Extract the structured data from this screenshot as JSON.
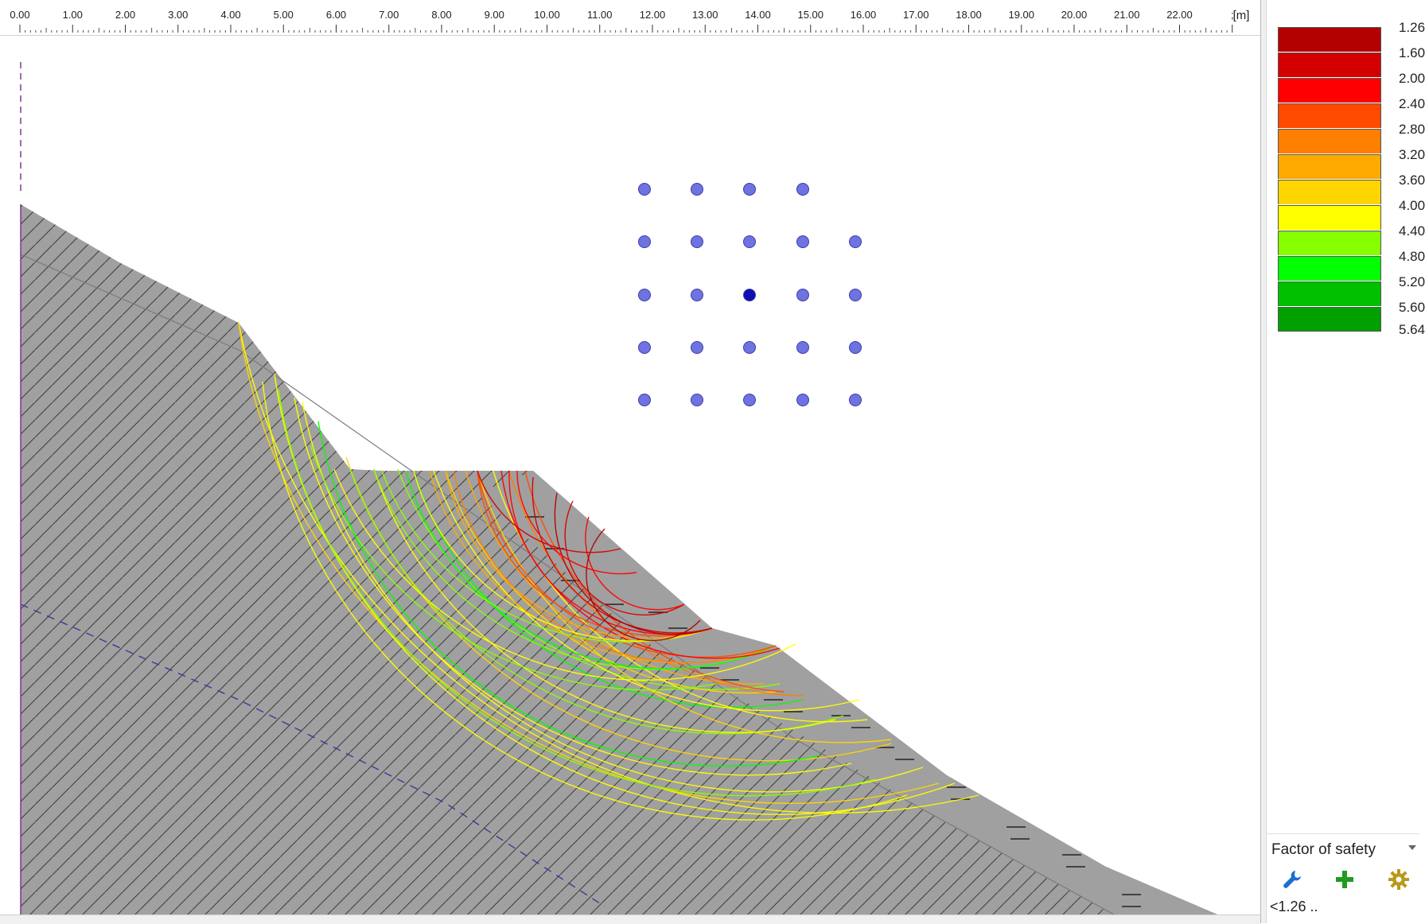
{
  "ruler": {
    "unit_label": "[m]",
    "ticks": [
      "0.00",
      "1.00",
      "2.00",
      "3.00",
      "4.00",
      "5.00",
      "6.00",
      "7.00",
      "8.00",
      "9.00",
      "10.00",
      "11.00",
      "12.00",
      "13.00",
      "14.00",
      "15.00",
      "16.00",
      "17.00",
      "18.00",
      "19.00",
      "20.00",
      "21.00",
      "22.00",
      ";"
    ]
  },
  "legend": {
    "entries": [
      {
        "label": "1.26",
        "color": "#b30000"
      },
      {
        "label": "1.60",
        "color": "#d40000"
      },
      {
        "label": "2.00",
        "color": "#ff0000"
      },
      {
        "label": "2.40",
        "color": "#ff4a00"
      },
      {
        "label": "2.80",
        "color": "#ff8000"
      },
      {
        "label": "3.20",
        "color": "#ffaa00"
      },
      {
        "label": "3.60",
        "color": "#ffd500"
      },
      {
        "label": "4.00",
        "color": "#ffff00"
      },
      {
        "label": "4.40",
        "color": "#88ff00"
      },
      {
        "label": "4.80",
        "color": "#00ff00"
      },
      {
        "label": "5.20",
        "color": "#00c000"
      },
      {
        "label": "5.60",
        "color": "#00a000"
      }
    ],
    "last_label": "5.64"
  },
  "result_select": {
    "value": "Factor of safety"
  },
  "toolbar": {
    "items": [
      {
        "icon": "wrench-icon",
        "color": "#1a6fd0"
      },
      {
        "icon": "plus-icon",
        "color": "#1f9b1f"
      },
      {
        "icon": "gear-icon",
        "color": "#b89a1c"
      }
    ]
  },
  "status": {
    "min_text": "<1.26 .."
  },
  "colors": {
    "terrain": "#a0a0a0",
    "hatch": "#404040",
    "grid_point": "#6f73e0",
    "grid_point_selected": "#1010b0",
    "water_line": "#3a3a9a",
    "boundary_line": "#7a2a8a"
  }
}
